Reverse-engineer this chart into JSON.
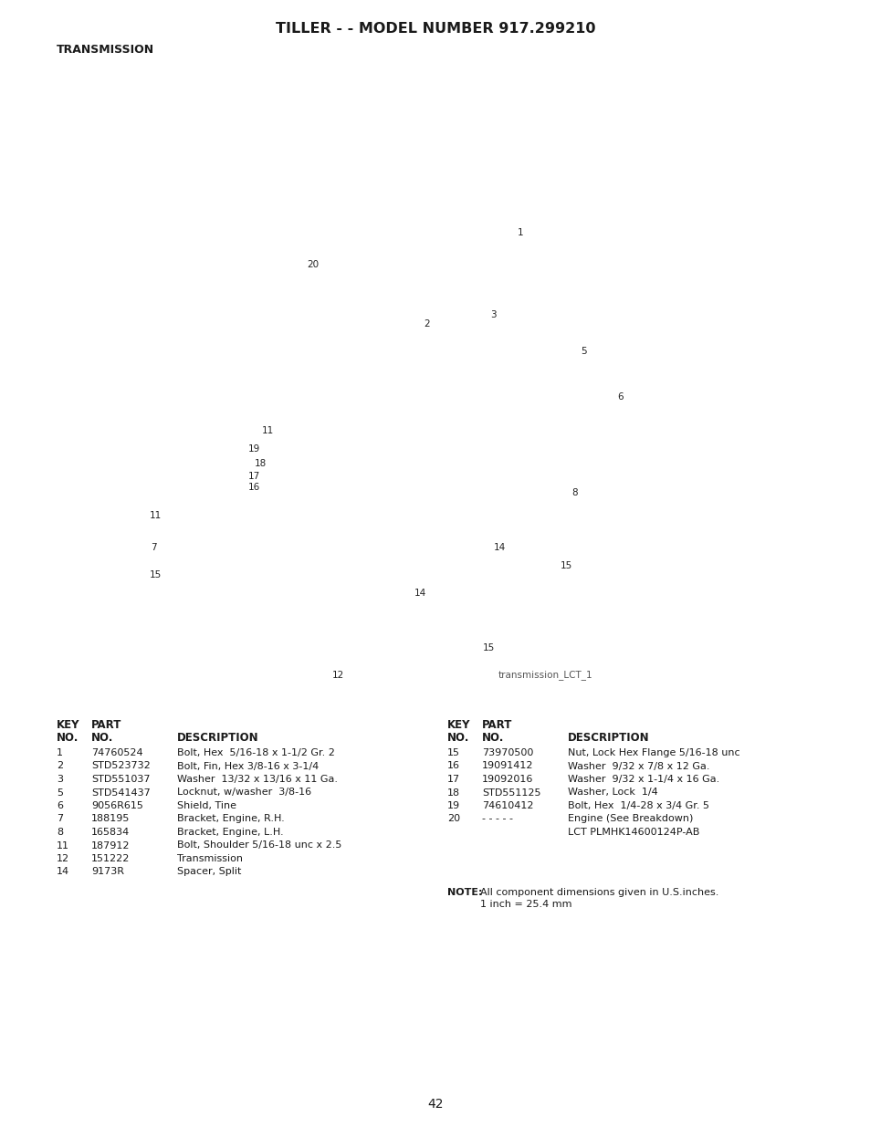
{
  "title": "TILLER - - MODEL NUMBER 917.299210",
  "subtitle": "TRANSMISSION",
  "image_label": "transmission_LCT_1",
  "page_number": "42",
  "background_color": "#ffffff",
  "title_fontsize": 11.5,
  "subtitle_fontsize": 9,
  "left_parts": [
    [
      "1",
      "74760524",
      "Bolt, Hex  5/16-18 x 1-1/2 Gr. 2"
    ],
    [
      "2",
      "STD523732",
      "Bolt, Fin, Hex 3/8-16 x 3-1/4"
    ],
    [
      "3",
      "STD551037",
      "Washer  13/32 x 13/16 x 11 Ga."
    ],
    [
      "5",
      "STD541437",
      "Locknut, w/washer  3/8-16"
    ],
    [
      "6",
      "9056R615",
      "Shield, Tine"
    ],
    [
      "7",
      "188195",
      "Bracket, Engine, R.H."
    ],
    [
      "8",
      "165834",
      "Bracket, Engine, L.H."
    ],
    [
      "11",
      "187912",
      "Bolt, Shoulder 5/16-18 unc x 2.5"
    ],
    [
      "12",
      "151222",
      "Transmission"
    ],
    [
      "14",
      "9173R",
      "Spacer, Split"
    ]
  ],
  "right_parts": [
    [
      "15",
      "73970500",
      "Nut, Lock Hex Flange 5/16-18 unc"
    ],
    [
      "16",
      "19091412",
      "Washer  9/32 x 7/8 x 12 Ga."
    ],
    [
      "17",
      "19092016",
      "Washer  9/32 x 1-1/4 x 16 Ga."
    ],
    [
      "18",
      "STD551125",
      "Washer, Lock  1/4"
    ],
    [
      "19",
      "74610412",
      "Bolt, Hex  1/4-28 x 3/4 Gr. 5"
    ],
    [
      "20",
      "- - - - -",
      "Engine (See Breakdown)"
    ],
    [
      "",
      "",
      "LCT PLMHK14600124P-AB"
    ]
  ],
  "note_bold": "NOTE:",
  "note_line1": "All component dimensions given in U.S.inches.",
  "note_line2": "1 inch = 25.4 mm"
}
